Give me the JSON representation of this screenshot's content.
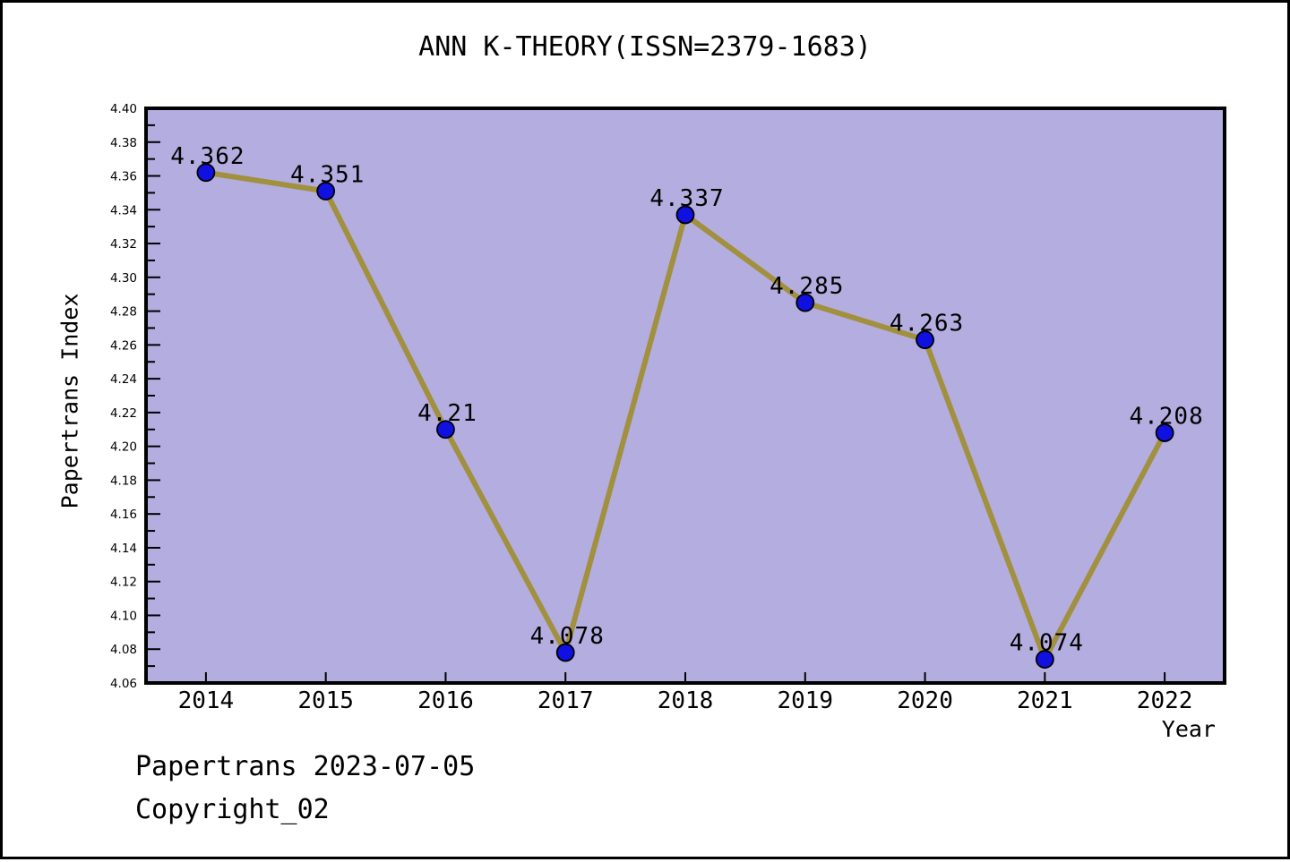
{
  "title": "ANN K-THEORY(ISSN=2379-1683)",
  "footer": {
    "line1": "Papertrans 2023-07-05",
    "line2": "Copyright_02"
  },
  "chart_data": {
    "type": "line",
    "title": "ANN K-THEORY(ISSN=2379-1683)",
    "xlabel": "Year",
    "ylabel": "Papertrans Index",
    "categories": [
      "2014",
      "2015",
      "2016",
      "2017",
      "2018",
      "2019",
      "2020",
      "2021",
      "2022"
    ],
    "values": [
      4.362,
      4.351,
      4.21,
      4.078,
      4.337,
      4.285,
      4.263,
      4.074,
      4.208
    ],
    "point_labels": [
      "4.362",
      "4.351",
      "4.21",
      "4.078",
      "4.337",
      "4.285",
      "4.263",
      "4.074",
      "4.208"
    ],
    "ylim": [
      4.06,
      4.4
    ],
    "y_major_step": 0.02,
    "y_minor_step": 0.01,
    "y_tick_labels": [
      "4.06",
      "4.08",
      "4.10",
      "4.12",
      "4.14",
      "4.16",
      "4.18",
      "4.20",
      "4.22",
      "4.24",
      "4.26",
      "4.28",
      "4.30",
      "4.32",
      "4.34",
      "4.36",
      "4.38",
      "4.40"
    ],
    "grid": false,
    "legend": "none",
    "colors": {
      "plot_bg": "#b4ade0",
      "line": "#a1903d",
      "marker": "#1010e0",
      "marker_edge": "#000000",
      "axis": "#000000",
      "text": "#000000",
      "page_bg": "#ffffff",
      "page_border": "#000000"
    }
  }
}
